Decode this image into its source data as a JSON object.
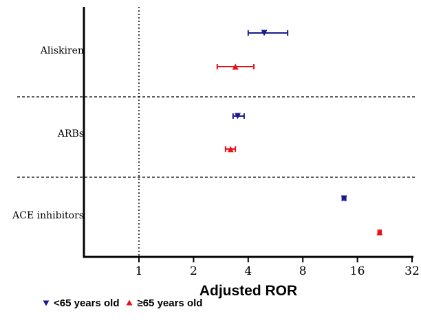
{
  "chart_data": {
    "type": "forest",
    "xlabel": "Adjusted ROR",
    "x_scale": "log2",
    "xlim": [
      0.5,
      32
    ],
    "x_ticks": [
      "1",
      "2",
      "4",
      "8",
      "16",
      "32"
    ],
    "x_tick_values": [
      1,
      2,
      4,
      8,
      16,
      32
    ],
    "reference_line": 1,
    "categories": [
      "Aliskiren",
      "ARBs",
      "ACE inhibitors"
    ],
    "series": [
      {
        "name": "<65 years old",
        "color": "#1a1a8c",
        "marker": "triangle-down",
        "points": [
          {
            "category": "Aliskiren",
            "estimate": 4.9,
            "ci_low": 4.0,
            "ci_high": 6.6
          },
          {
            "category": "ARBs",
            "estimate": 3.5,
            "ci_low": 3.3,
            "ci_high": 3.8
          },
          {
            "category": "ACE inhibitors",
            "estimate": 13.5,
            "ci_low": 13.2,
            "ci_high": 13.8
          }
        ]
      },
      {
        "name": "≥65 years old",
        "color": "#e8111a",
        "marker": "triangle-up",
        "points": [
          {
            "category": "Aliskiren",
            "estimate": 3.4,
            "ci_low": 2.7,
            "ci_high": 4.3
          },
          {
            "category": "ARBs",
            "estimate": 3.2,
            "ci_low": 3.0,
            "ci_high": 3.4
          },
          {
            "category": "ACE inhibitors",
            "estimate": 21.2,
            "ci_low": 20.8,
            "ci_high": 21.6
          }
        ]
      }
    ],
    "legend_position": "bottom-left",
    "grid": false
  }
}
